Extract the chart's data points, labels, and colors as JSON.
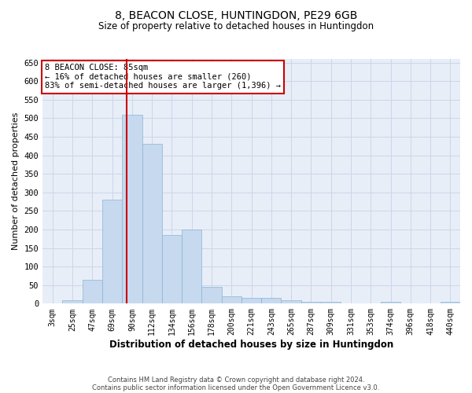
{
  "title": "8, BEACON CLOSE, HUNTINGDON, PE29 6GB",
  "subtitle": "Size of property relative to detached houses in Huntingdon",
  "xlabel": "Distribution of detached houses by size in Huntingdon",
  "ylabel": "Number of detached properties",
  "categories": [
    "3sqm",
    "25sqm",
    "47sqm",
    "69sqm",
    "90sqm",
    "112sqm",
    "134sqm",
    "156sqm",
    "178sqm",
    "200sqm",
    "221sqm",
    "243sqm",
    "265sqm",
    "287sqm",
    "309sqm",
    "331sqm",
    "353sqm",
    "374sqm",
    "396sqm",
    "418sqm",
    "440sqm"
  ],
  "values": [
    0,
    10,
    65,
    280,
    510,
    430,
    185,
    200,
    45,
    20,
    15,
    15,
    10,
    5,
    5,
    1,
    0,
    5,
    0,
    0,
    5
  ],
  "bar_color": "#c6d9ee",
  "bar_edge_color": "#8ab4d4",
  "vline_color": "#cc0000",
  "vline_xindex": 3.72,
  "annotation_line1": "8 BEACON CLOSE: 85sqm",
  "annotation_line2": "← 16% of detached houses are smaller (260)",
  "annotation_line3": "83% of semi-detached houses are larger (1,396) →",
  "annotation_box_color": "#ffffff",
  "annotation_box_edge": "#cc0000",
  "ylim": [
    0,
    660
  ],
  "yticks": [
    0,
    50,
    100,
    150,
    200,
    250,
    300,
    350,
    400,
    450,
    500,
    550,
    600,
    650
  ],
  "grid_color": "#ccd6e8",
  "background_color": "#e8eef8",
  "footer1": "Contains HM Land Registry data © Crown copyright and database right 2024.",
  "footer2": "Contains public sector information licensed under the Open Government Licence v3.0."
}
